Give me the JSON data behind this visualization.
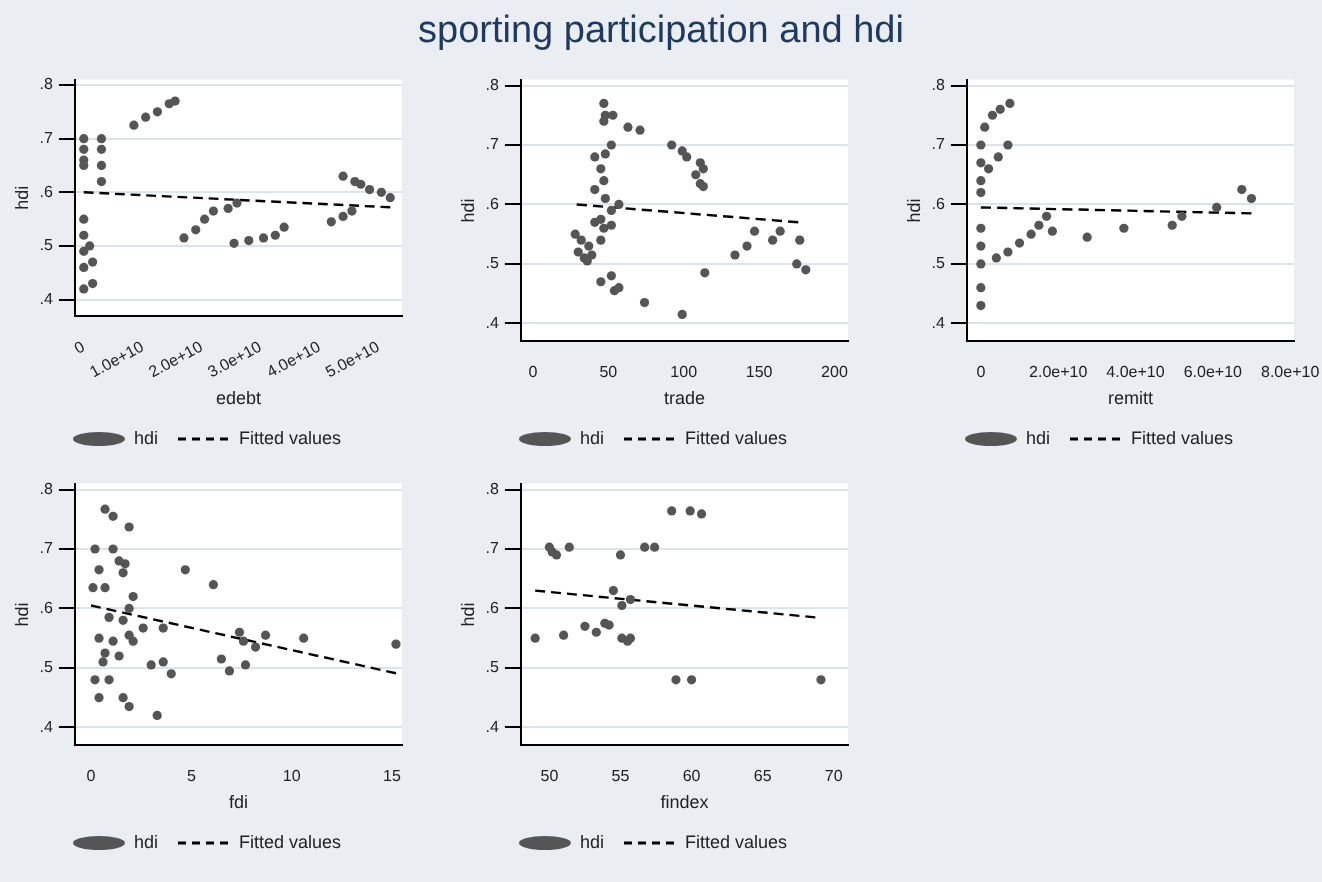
{
  "chart_data": [
    {
      "type": "other",
      "title": "sporting participation and hdi"
    },
    {
      "type": "scatter",
      "xlabel": "edebt",
      "ylabel": "hdi",
      "xlim": [
        -1500000000.0,
        54000000000.0
      ],
      "xticks": [
        0,
        {
          "value": 10000000000.0,
          "label": "1.0e+10"
        },
        {
          "value": 20000000000.0,
          "label": "2.0e+10"
        },
        {
          "value": 30000000000.0,
          "label": "3.0e+10"
        },
        {
          "value": 40000000000.0,
          "label": "4.0e+10"
        },
        {
          "value": 50000000000.0,
          "label": "5.0e+10"
        }
      ],
      "ylim": [
        0.37,
        0.81
      ],
      "yticks": [
        {
          "value": 0.4,
          "label": ".4"
        },
        {
          "value": 0.5,
          "label": ".5"
        },
        {
          "value": 0.6,
          "label": ".6"
        },
        {
          "value": 0.7,
          "label": ".7"
        },
        {
          "value": 0.8,
          "label": ".8"
        }
      ],
      "grid": "y",
      "legend": "bottom",
      "series": [
        {
          "name": "hdi",
          "color": "#555555",
          "marker": "circle",
          "x": [
            0,
            0,
            0,
            0,
            0,
            0,
            0,
            0,
            0,
            3000000000.0,
            3000000000.0,
            3000000000.0,
            3000000000.0,
            1000000000.0,
            1500000000.0,
            1500000000.0,
            8500000000.0,
            10500000000.0,
            12500000000.0,
            14500000000.0,
            15500000000.0,
            17000000000.0,
            19000000000.0,
            20500000000.0,
            22000000000.0,
            24500000000.0,
            26000000000.0,
            25500000000.0,
            28000000000.0,
            30500000000.0,
            32500000000.0,
            34000000000.0,
            42000000000.0,
            44000000000.0,
            45500000000.0,
            44000000000.0,
            46000000000.0,
            47000000000.0,
            48500000000.0,
            50500000000.0,
            52000000000.0
          ],
          "values": [
            0.7,
            0.68,
            0.66,
            0.65,
            0.55,
            0.52,
            0.49,
            0.46,
            0.42,
            0.7,
            0.68,
            0.65,
            0.62,
            0.5,
            0.47,
            0.43,
            0.725,
            0.74,
            0.75,
            0.765,
            0.77,
            0.515,
            0.53,
            0.55,
            0.565,
            0.57,
            0.58,
            0.505,
            0.51,
            0.515,
            0.52,
            0.535,
            0.545,
            0.555,
            0.565,
            0.63,
            0.62,
            0.615,
            0.605,
            0.6,
            0.59
          ]
        },
        {
          "name": "Fitted values",
          "type": "line",
          "color": "#000000",
          "marker": "none",
          "line_style": "dashed",
          "x": [
            0,
            52000000000.0
          ],
          "values": [
            0.6,
            0.572
          ]
        }
      ]
    },
    {
      "type": "scatter",
      "xlabel": "trade",
      "ylabel": "hdi",
      "xlim": [
        -8,
        209
      ],
      "xticks": [
        0,
        50,
        100,
        150,
        200
      ],
      "ylim": [
        0.37,
        0.81
      ],
      "yticks": [
        {
          "value": 0.4,
          "label": ".4"
        },
        {
          "value": 0.5,
          "label": ".5"
        },
        {
          "value": 0.6,
          "label": ".6"
        },
        {
          "value": 0.7,
          "label": ".7"
        },
        {
          "value": 0.8,
          "label": ".8"
        }
      ],
      "grid": "y",
      "legend": "bottom",
      "series": [
        {
          "name": "hdi",
          "color": "#555555",
          "marker": "circle",
          "x": [
            47,
            48,
            47,
            53,
            63,
            71,
            92,
            99,
            102,
            111,
            113,
            108,
            111,
            113,
            52,
            48,
            41,
            45,
            47,
            41,
            48,
            57,
            52,
            45,
            41,
            47,
            52,
            45,
            28,
            32,
            37,
            30,
            34,
            39,
            36,
            45,
            52,
            57,
            54,
            74,
            99,
            114,
            134,
            142,
            147,
            159,
            164,
            177,
            175,
            181
          ],
          "values": [
            0.77,
            0.75,
            0.74,
            0.75,
            0.73,
            0.725,
            0.7,
            0.69,
            0.68,
            0.67,
            0.66,
            0.65,
            0.635,
            0.63,
            0.7,
            0.685,
            0.68,
            0.66,
            0.64,
            0.625,
            0.61,
            0.6,
            0.59,
            0.575,
            0.57,
            0.56,
            0.565,
            0.54,
            0.55,
            0.54,
            0.53,
            0.52,
            0.51,
            0.515,
            0.505,
            0.47,
            0.48,
            0.46,
            0.455,
            0.435,
            0.415,
            0.485,
            0.515,
            0.53,
            0.555,
            0.54,
            0.555,
            0.54,
            0.5,
            0.49
          ]
        },
        {
          "name": "Fitted values",
          "type": "line",
          "color": "#000000",
          "marker": "none",
          "line_style": "dashed",
          "x": [
            29,
            176
          ],
          "values": [
            0.6,
            0.57
          ]
        }
      ]
    },
    {
      "type": "scatter",
      "xlabel": "remitt",
      "ylabel": "hdi",
      "xlim": [
        -3600000000.0,
        81000000000.0
      ],
      "xticks": [
        0,
        {
          "value": 20000000000.0,
          "label": "2.0e+10"
        },
        {
          "value": 40000000000.0,
          "label": "4.0e+10"
        },
        {
          "value": 60000000000.0,
          "label": "6.0e+10"
        },
        {
          "value": 80000000000.0,
          "label": "8.0e+10"
        }
      ],
      "ylim": [
        0.37,
        0.81
      ],
      "yticks": [
        {
          "value": 0.4,
          "label": ".4"
        },
        {
          "value": 0.5,
          "label": ".5"
        },
        {
          "value": 0.6,
          "label": ".6"
        },
        {
          "value": 0.7,
          "label": ".7"
        },
        {
          "value": 0.8,
          "label": ".8"
        }
      ],
      "grid": "y",
      "legend": "bottom",
      "series": [
        {
          "name": "hdi",
          "color": "#555555",
          "marker": "circle",
          "x": [
            0,
            0,
            0,
            0,
            0,
            0,
            0,
            0,
            0,
            1000000000.0,
            3000000000.0,
            5000000000.0,
            7500000000.0,
            2000000000.0,
            4500000000.0,
            7000000000.0,
            4000000000.0,
            7000000000.0,
            10000000000.0,
            13000000000.0,
            15000000000.0,
            17000000000.0,
            18500000000.0,
            27500000000.0,
            37000000000.0,
            49500000000.0,
            52000000000.0,
            61000000000.0,
            67500000000.0,
            70000000000.0
          ],
          "values": [
            0.7,
            0.67,
            0.64,
            0.62,
            0.56,
            0.53,
            0.5,
            0.46,
            0.43,
            0.73,
            0.75,
            0.76,
            0.77,
            0.66,
            0.68,
            0.7,
            0.51,
            0.52,
            0.535,
            0.55,
            0.565,
            0.58,
            0.555,
            0.545,
            0.56,
            0.565,
            0.58,
            0.595,
            0.625,
            0.61
          ]
        },
        {
          "name": "Fitted values",
          "type": "line",
          "color": "#000000",
          "marker": "none",
          "line_style": "dashed",
          "x": [
            0,
            70000000000.0
          ],
          "values": [
            0.595,
            0.585
          ]
        }
      ]
    },
    {
      "type": "scatter",
      "xlabel": "fdi",
      "ylabel": "hdi",
      "xlim": [
        -0.8,
        15.5
      ],
      "xticks": [
        0,
        5,
        10,
        15
      ],
      "ylim": [
        0.37,
        0.81
      ],
      "yticks": [
        {
          "value": 0.4,
          "label": ".4"
        },
        {
          "value": 0.5,
          "label": ".5"
        },
        {
          "value": 0.6,
          "label": ".6"
        },
        {
          "value": 0.7,
          "label": ".7"
        },
        {
          "value": 0.8,
          "label": ".8"
        }
      ],
      "grid": "y",
      "legend": "bottom",
      "series": [
        {
          "name": "hdi",
          "color": "#555555",
          "marker": "circle",
          "x": [
            0.7,
            1.1,
            1.9,
            0.2,
            1.1,
            1.4,
            1.7,
            0.4,
            0.1,
            0.7,
            1.6,
            2.1,
            1.9,
            0.9,
            1.6,
            0.4,
            1.1,
            1.9,
            0.7,
            1.4,
            2.6,
            3.6,
            2.1,
            0.6,
            0.2,
            0.9,
            0.4,
            1.6,
            1.9,
            3.3,
            3.0,
            3.6,
            4.0,
            4.7,
            6.1,
            6.5,
            6.9,
            7.4,
            7.6,
            7.7,
            8.2,
            8.7,
            10.6,
            15.2
          ],
          "values": [
            0.767,
            0.755,
            0.737,
            0.7,
            0.7,
            0.68,
            0.675,
            0.665,
            0.635,
            0.635,
            0.66,
            0.62,
            0.6,
            0.585,
            0.58,
            0.55,
            0.545,
            0.555,
            0.525,
            0.52,
            0.567,
            0.567,
            0.545,
            0.51,
            0.48,
            0.48,
            0.45,
            0.45,
            0.435,
            0.42,
            0.505,
            0.51,
            0.49,
            0.665,
            0.64,
            0.515,
            0.495,
            0.56,
            0.545,
            0.505,
            0.535,
            0.555,
            0.55,
            0.54
          ]
        },
        {
          "name": "Fitted values",
          "type": "line",
          "color": "#000000",
          "marker": "none",
          "line_style": "dashed",
          "x": [
            0,
            15.2
          ],
          "values": [
            0.605,
            0.491
          ]
        }
      ]
    },
    {
      "type": "scatter",
      "xlabel": "findex",
      "ylabel": "hdi",
      "xlim": [
        48,
        71
      ],
      "xticks": [
        50,
        55,
        60,
        65,
        70
      ],
      "ylim": [
        0.37,
        0.81
      ],
      "yticks": [
        {
          "value": 0.4,
          "label": ".4"
        },
        {
          "value": 0.5,
          "label": ".5"
        },
        {
          "value": 0.6,
          "label": ".6"
        },
        {
          "value": 0.7,
          "label": ".7"
        },
        {
          "value": 0.8,
          "label": ".8"
        }
      ],
      "grid": "y",
      "legend": "bottom",
      "series": [
        {
          "name": "hdi",
          "color": "#555555",
          "marker": "circle",
          "x": [
            49,
            50,
            50.2,
            50.5,
            51.4,
            51,
            52.5,
            53.3,
            53.9,
            54.2,
            54.5,
            55,
            55.1,
            55.7,
            55.1,
            55.5,
            55.7,
            56.7,
            57.4,
            58.6,
            59.9,
            60.7,
            58.9,
            60,
            69.1
          ],
          "values": [
            0.55,
            0.703,
            0.695,
            0.69,
            0.703,
            0.555,
            0.57,
            0.56,
            0.575,
            0.572,
            0.63,
            0.69,
            0.605,
            0.615,
            0.55,
            0.545,
            0.55,
            0.703,
            0.703,
            0.764,
            0.764,
            0.759,
            0.48,
            0.48,
            0.48
          ]
        },
        {
          "name": "Fitted values",
          "type": "line",
          "color": "#000000",
          "marker": "none",
          "line_style": "dashed",
          "x": [
            49,
            68.7
          ],
          "values": [
            0.63,
            0.585
          ]
        }
      ]
    }
  ]
}
